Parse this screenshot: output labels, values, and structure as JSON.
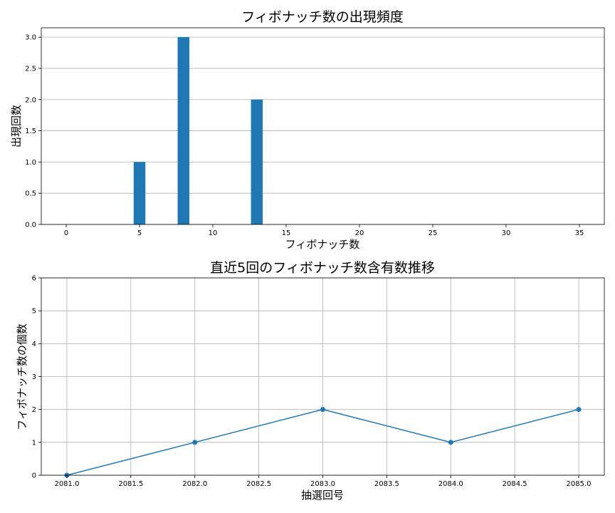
{
  "chart_data": [
    {
      "type": "bar",
      "title": "フィボナッチ数の出現頻度",
      "xlabel": "フィボナッチ数",
      "ylabel": "出現回数",
      "x": [
        5,
        8,
        13
      ],
      "values": [
        1,
        3,
        2
      ],
      "xlim": [
        -1.7,
        36.7
      ],
      "ylim": [
        0,
        3.15
      ],
      "xticks": [
        "0",
        "5",
        "10",
        "15",
        "20",
        "25",
        "30",
        "35"
      ],
      "yticks": [
        "0.0",
        "0.5",
        "1.0",
        "1.5",
        "2.0",
        "2.5",
        "3.0"
      ],
      "grid": "y",
      "color": "#1f77b4"
    },
    {
      "type": "line",
      "title": "直近5回のフィボナッチ数含有数推移",
      "xlabel": "抽選回号",
      "ylabel": "フィボナッチ数の個数",
      "x": [
        2081,
        2082,
        2083,
        2084,
        2085
      ],
      "values": [
        0,
        1,
        2,
        1,
        2
      ],
      "xlim": [
        2080.8,
        2085.2
      ],
      "ylim": [
        0,
        6
      ],
      "xticks": [
        "2081.0",
        "2081.5",
        "2082.0",
        "2082.5",
        "2083.0",
        "2083.5",
        "2084.0",
        "2084.5",
        "2085.0"
      ],
      "yticks": [
        "0",
        "1",
        "2",
        "3",
        "4",
        "5",
        "6"
      ],
      "grid": "both",
      "color": "#1f77b4"
    }
  ]
}
